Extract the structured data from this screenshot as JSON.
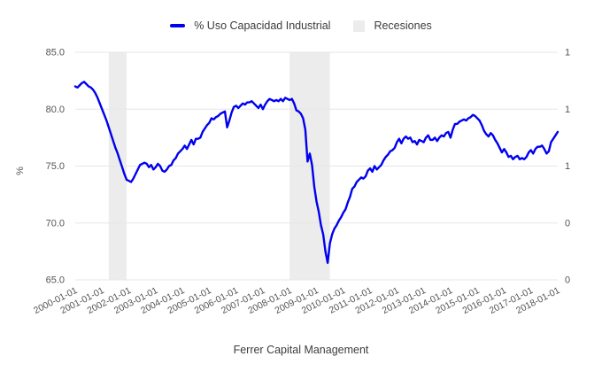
{
  "chart_data": {
    "type": "line",
    "title": "",
    "xlabel": "Ferrer Capital Management",
    "ylabel": "%",
    "x_start": "2000-01-01",
    "x_end": "2018-01-01",
    "frequency": "monthly",
    "grid": "horizontal",
    "legend_position": "top-center",
    "series": [
      {
        "name": "% Uso Capacidad Industrial",
        "color": "#0000ee",
        "values": [
          82.0,
          81.9,
          82.1,
          82.3,
          82.4,
          82.2,
          82.0,
          81.9,
          81.7,
          81.4,
          81.0,
          80.5,
          80.0,
          79.5,
          79.0,
          78.4,
          77.8,
          77.2,
          76.6,
          76.1,
          75.5,
          74.9,
          74.3,
          73.8,
          73.7,
          73.6,
          73.9,
          74.3,
          74.7,
          75.1,
          75.2,
          75.3,
          75.2,
          74.9,
          75.1,
          74.7,
          74.9,
          75.2,
          75.0,
          74.6,
          74.5,
          74.7,
          75.0,
          75.1,
          75.5,
          75.7,
          76.1,
          76.3,
          76.5,
          76.8,
          76.5,
          76.9,
          77.3,
          76.9,
          77.4,
          77.4,
          77.5,
          78.0,
          78.3,
          78.6,
          78.8,
          79.2,
          79.1,
          79.3,
          79.4,
          79.6,
          79.7,
          79.8,
          78.4,
          79.0,
          79.7,
          80.2,
          80.3,
          80.1,
          80.3,
          80.5,
          80.4,
          80.6,
          80.6,
          80.7,
          80.5,
          80.3,
          80.1,
          80.4,
          80.0,
          80.4,
          80.7,
          80.9,
          80.8,
          80.7,
          80.8,
          80.7,
          80.9,
          80.7,
          81.0,
          80.9,
          80.8,
          80.9,
          80.5,
          79.9,
          79.8,
          79.6,
          79.2,
          78.2,
          75.4,
          76.1,
          75.1,
          73.2,
          71.9,
          71.0,
          69.8,
          69.0,
          67.5,
          66.5,
          68.2,
          69.0,
          69.5,
          69.8,
          70.2,
          70.5,
          70.9,
          71.2,
          71.8,
          72.3,
          73.0,
          73.2,
          73.6,
          73.8,
          74.0,
          73.9,
          74.1,
          74.6,
          74.8,
          74.5,
          75.0,
          74.7,
          74.9,
          75.1,
          75.5,
          75.8,
          76.0,
          76.3,
          76.4,
          76.6,
          77.1,
          77.4,
          77.0,
          77.4,
          77.6,
          77.4,
          77.5,
          77.1,
          77.2,
          76.9,
          77.3,
          77.2,
          77.1,
          77.5,
          77.7,
          77.3,
          77.3,
          77.5,
          77.2,
          77.5,
          77.7,
          77.6,
          77.9,
          78.0,
          77.5,
          78.2,
          78.7,
          78.7,
          78.9,
          79.0,
          79.1,
          79.0,
          79.2,
          79.3,
          79.5,
          79.4,
          79.2,
          79.0,
          78.6,
          78.1,
          77.8,
          77.6,
          77.9,
          77.7,
          77.3,
          77.0,
          76.6,
          76.2,
          76.5,
          76.2,
          75.8,
          75.9,
          75.6,
          75.8,
          75.9,
          75.6,
          75.7,
          75.6,
          75.8,
          76.2,
          76.4,
          76.1,
          76.5,
          76.7,
          76.7,
          76.8,
          76.5,
          76.1,
          76.3,
          77.1,
          77.4,
          77.7,
          78.0
        ]
      }
    ],
    "bands": {
      "label": "Recesiones",
      "color": "#ececec",
      "periods": [
        {
          "start": "2001-04-01",
          "end": "2001-12-01"
        },
        {
          "start": "2008-01-01",
          "end": "2009-07-01"
        }
      ]
    },
    "y_axis_left": {
      "range": [
        65,
        85
      ],
      "ticks": [
        85,
        80,
        75,
        70,
        65
      ],
      "tick_labels": [
        "85.0",
        "80.0",
        "75.0",
        "70.0",
        "65.0"
      ]
    },
    "y_axis_right": {
      "range": [
        0,
        1
      ],
      "ticks": [
        1,
        0.75,
        0.5,
        0.25,
        0
      ],
      "tick_labels": [
        "1",
        "1",
        "1",
        "0",
        "0"
      ]
    },
    "x_axis": {
      "tick_labels": [
        "2000-01-01",
        "2001-01-01",
        "2002-01-01",
        "2003-01-01",
        "2004-01-01",
        "2005-01-01",
        "2006-01-01",
        "2007-01-01",
        "2008-01-01",
        "2009-01-01",
        "2010-01-01",
        "2011-01-01",
        "2012-01-01",
        "2013-01-01",
        "2014-01-01",
        "2015-01-01",
        "2016-01-01",
        "2017-01-01",
        "2018-01-01"
      ]
    }
  },
  "colors": {
    "line": "#0000ee",
    "band": "#ececec",
    "grid": "#e6e6e6",
    "tick_text": "#545454",
    "title_text": "#3c3c3c",
    "background": "#ffffff"
  }
}
